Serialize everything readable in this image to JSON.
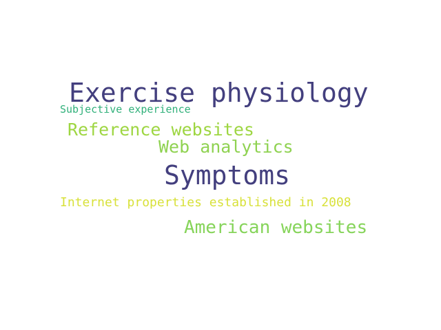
{
  "word_cloud": {
    "words": [
      {
        "text": "Exercise physiology",
        "color": "#433f7e"
      },
      {
        "text": "Subjective experience",
        "color": "#30b07a"
      },
      {
        "text": "Reference websites",
        "color": "#9ed642"
      },
      {
        "text": "Web analytics",
        "color": "#8fd251"
      },
      {
        "text": "Symptoms",
        "color": "#433f7e"
      },
      {
        "text": "Internet properties established in 2008",
        "color": "#d8e13a"
      },
      {
        "text": "American websites",
        "color": "#86d45a"
      }
    ]
  }
}
